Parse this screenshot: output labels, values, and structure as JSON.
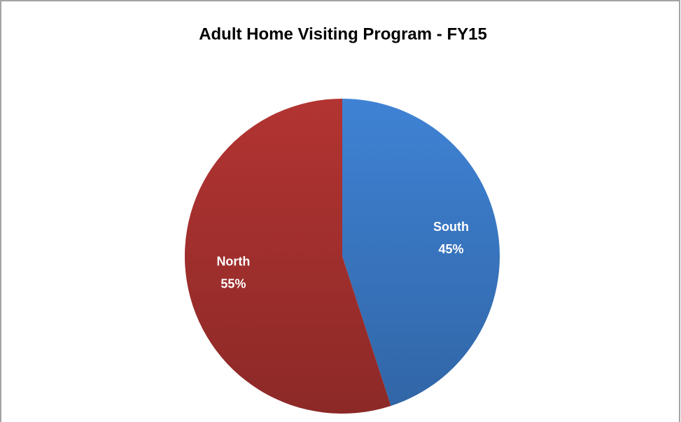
{
  "chart_data": {
    "type": "pie",
    "title": "Adult Home Visiting Program - FY15",
    "categories": [
      "South",
      "North"
    ],
    "values": [
      45,
      55
    ],
    "value_labels": [
      "45%",
      "55%"
    ],
    "colors": [
      "#3a78c4",
      "#a5302e"
    ]
  }
}
